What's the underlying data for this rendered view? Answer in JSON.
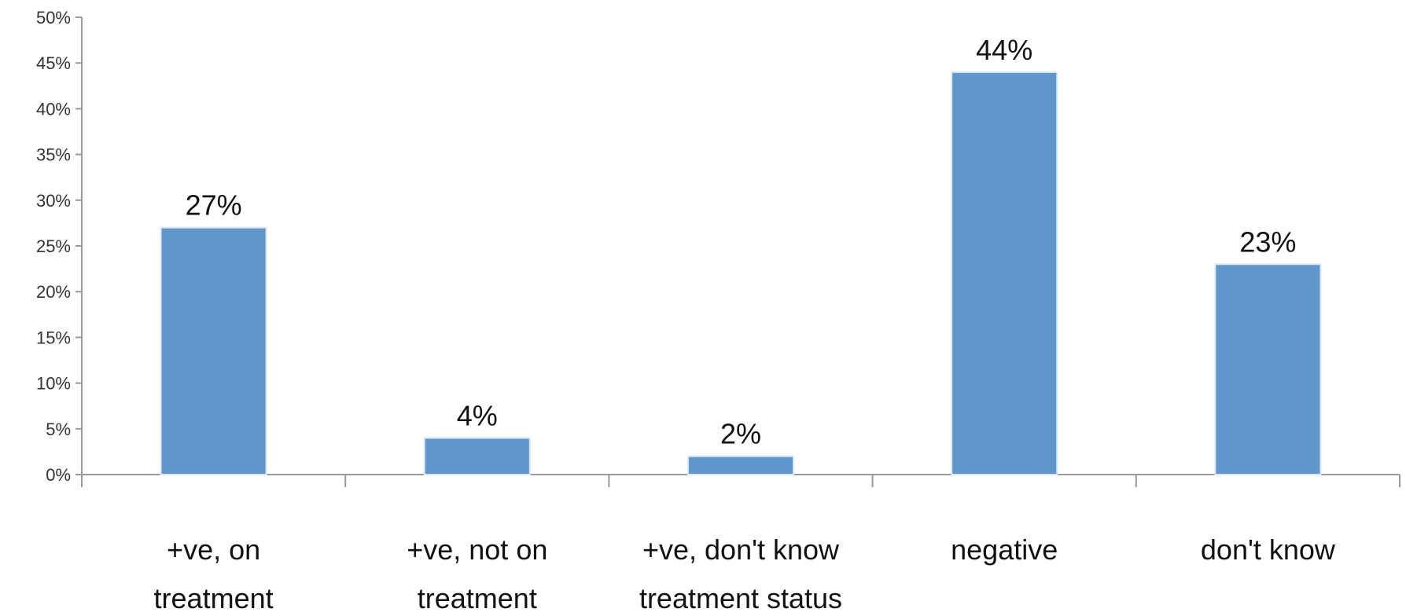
{
  "chart_data": {
    "type": "bar",
    "title": "",
    "xlabel": "",
    "ylabel": "",
    "categories": [
      [
        "+ve, on",
        "treatment"
      ],
      [
        "+ve, not on",
        "treatment"
      ],
      [
        "+ve, don't know",
        "treatment status"
      ],
      [
        "negative"
      ],
      [
        "don't know"
      ]
    ],
    "values": [
      27,
      4,
      2,
      44,
      23
    ],
    "data_labels": [
      "27%",
      "4%",
      "2%",
      "44%",
      "23%"
    ],
    "ylim": [
      0,
      50
    ],
    "yticks": [
      0,
      5,
      10,
      15,
      20,
      25,
      30,
      35,
      40,
      45,
      50
    ],
    "ytick_labels": [
      "0%",
      "5%",
      "10%",
      "15%",
      "20%",
      "25%",
      "30%",
      "35%",
      "40%",
      "45%",
      "50%"
    ],
    "grid": false,
    "legend": "none",
    "colors": {
      "bar": "#6096cb",
      "bar_edge": "#dbe7f4"
    }
  }
}
